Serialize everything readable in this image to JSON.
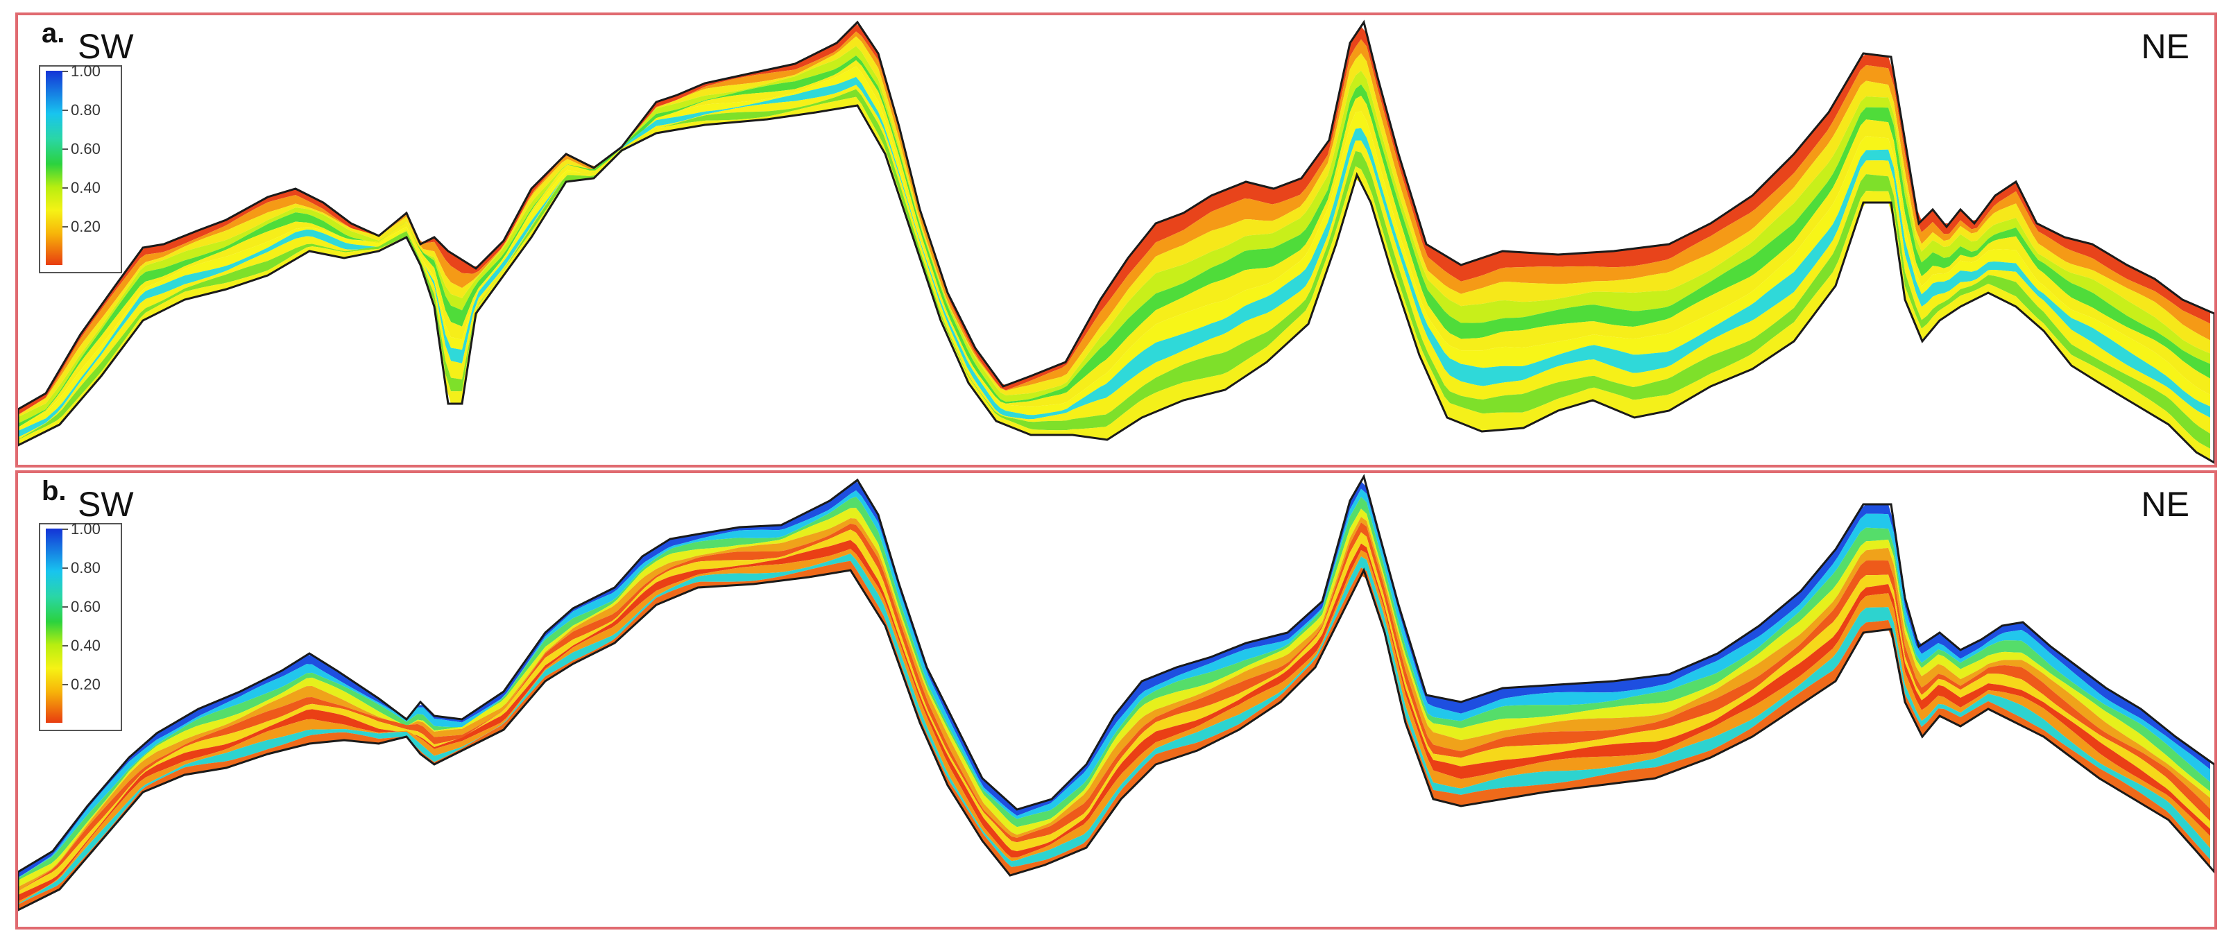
{
  "panels": [
    {
      "letter": "a.",
      "left_label": "SW",
      "right_label": "NE",
      "colorbar_ticks": [
        "1.00",
        "0.80",
        "0.60",
        "0.40",
        "0.20"
      ],
      "band_colors": [
        "#e8441b",
        "#f59a16",
        "#f6e81a",
        "#c8ef1a",
        "#4fdc3a",
        "#f6ee1a",
        "#f7f518",
        "#2fd9d9",
        "#f6f018",
        "#7ee02a",
        "#f4f01a"
      ]
    },
    {
      "letter": "b.",
      "left_label": "SW",
      "right_label": "NE",
      "colorbar_ticks": [
        "1.00",
        "0.80",
        "0.60",
        "0.40",
        "0.20"
      ],
      "band_colors": [
        "#1e4fe0",
        "#22c7ec",
        "#55dd6a",
        "#e6f01c",
        "#f0a21a",
        "#ee5a1a",
        "#f6d81a",
        "#ea3f15",
        "#f39a18",
        "#2dd3cf",
        "#ef6a1a"
      ]
    }
  ]
}
